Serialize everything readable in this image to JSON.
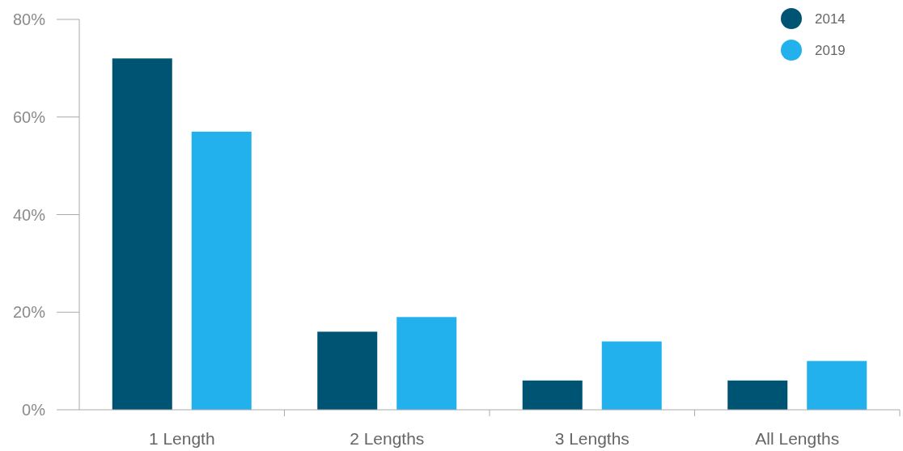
{
  "chart_data": {
    "type": "bar",
    "categories": [
      "1 Length",
      "2 Lengths",
      "3 Lengths",
      "All Lengths"
    ],
    "series": [
      {
        "name": "2014",
        "color": "#005473",
        "values": [
          72,
          16,
          6,
          6
        ]
      },
      {
        "name": "2019",
        "color": "#22b1ec",
        "values": [
          57,
          19,
          14,
          10
        ]
      }
    ],
    "ylim": [
      0,
      80
    ],
    "yticks": [
      {
        "value": 0,
        "label": "0%"
      },
      {
        "value": 20,
        "label": "20%"
      },
      {
        "value": 40,
        "label": "40%"
      },
      {
        "value": 60,
        "label": "60%"
      },
      {
        "value": 80,
        "label": "80%"
      }
    ],
    "grid": false,
    "legend": "top right"
  }
}
